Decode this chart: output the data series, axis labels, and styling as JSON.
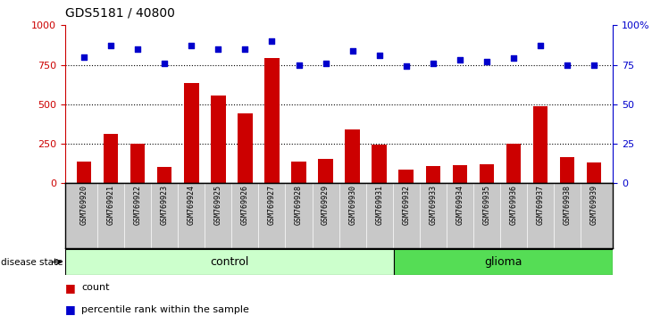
{
  "title": "GDS5181 / 40800",
  "samples": [
    "GSM769920",
    "GSM769921",
    "GSM769922",
    "GSM769923",
    "GSM769924",
    "GSM769925",
    "GSM769926",
    "GSM769927",
    "GSM769928",
    "GSM769929",
    "GSM769930",
    "GSM769931",
    "GSM769932",
    "GSM769933",
    "GSM769934",
    "GSM769935",
    "GSM769936",
    "GSM769937",
    "GSM769938",
    "GSM769939"
  ],
  "counts": [
    135,
    315,
    250,
    105,
    635,
    555,
    445,
    790,
    140,
    155,
    340,
    245,
    85,
    110,
    115,
    120,
    250,
    485,
    165,
    130
  ],
  "percentiles": [
    80,
    87,
    85,
    76,
    87,
    85,
    85,
    90,
    75,
    76,
    84,
    81,
    74,
    76,
    78,
    77,
    79,
    87,
    75,
    75
  ],
  "control_count": 12,
  "glioma_count": 8,
  "bar_color": "#cc0000",
  "dot_color": "#0000cc",
  "control_color": "#ccffcc",
  "glioma_color": "#55dd55",
  "ylim_left": [
    0,
    1000
  ],
  "ylim_right": [
    0,
    100
  ],
  "yticks_left": [
    0,
    250,
    500,
    750,
    1000
  ],
  "yticks_right": [
    0,
    25,
    50,
    75,
    100
  ],
  "grid_values": [
    250,
    500,
    750
  ],
  "background_color": "#ffffff",
  "tick_label_area_color": "#c8c8c8"
}
